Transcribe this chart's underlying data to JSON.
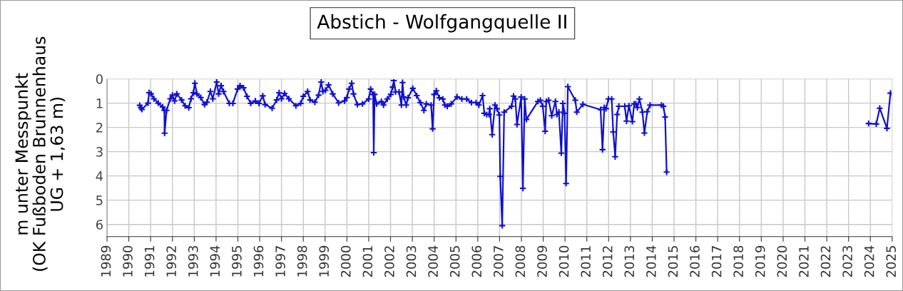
{
  "chart_data": {
    "type": "line",
    "title": "Abstich - Wolfgangquelle II",
    "ylabel": "m unter Messpunkt\n(OK Fußboden Brunnenhaus\nUG + 1,63 m)",
    "series": [
      {
        "color": "#1010d0",
        "x": [
          1990.5,
          1990.55,
          1990.6,
          1990.88,
          1990.93,
          1991.02,
          1991.15,
          1991.35,
          1991.55,
          1991.63,
          1991.64,
          1991.73,
          1991.9,
          1992.0,
          1992.1,
          1992.2,
          1992.42,
          1992.58,
          1992.75,
          1992.85,
          1992.96,
          1993.03,
          1993.12,
          1993.3,
          1993.47,
          1993.58,
          1993.74,
          1993.85,
          1994.03,
          1994.12,
          1994.23,
          1994.34,
          1994.61,
          1994.77,
          1994.99,
          1995.1,
          1995.26,
          1995.42,
          1995.59,
          1995.8,
          1995.97,
          1996.14,
          1996.25,
          1996.57,
          1996.78,
          1996.89,
          1997.0,
          1997.14,
          1997.34,
          1997.66,
          1997.88,
          1998.0,
          1998.2,
          1998.31,
          1998.53,
          1998.7,
          1998.82,
          1998.9,
          1999.02,
          1999.16,
          1999.35,
          1999.62,
          1999.89,
          2000.0,
          2000.1,
          2000.22,
          2000.3,
          2000.48,
          2000.71,
          2001.0,
          2001.09,
          2001.2,
          2001.23,
          2001.27,
          2001.36,
          2001.58,
          2001.68,
          2001.85,
          2002.01,
          2002.1,
          2002.15,
          2002.23,
          2002.39,
          2002.5,
          2002.55,
          2002.6,
          2002.72,
          2002.8,
          2003.02,
          2003.2,
          2003.37,
          2003.53,
          2003.64,
          2003.86,
          2003.93,
          2004.0,
          2004.1,
          2004.24,
          2004.4,
          2004.49,
          2004.6,
          2004.78,
          2005.05,
          2005.27,
          2005.49,
          2005.71,
          2005.92,
          2006.05,
          2006.22,
          2006.3,
          2006.41,
          2006.52,
          2006.55,
          2006.66,
          2006.79,
          2006.88,
          2006.99,
          2007.03,
          2007.12,
          2007.21,
          2007.55,
          2007.64,
          2007.72,
          2007.8,
          2007.99,
          2008.07,
          2008.15,
          2008.23,
          2008.76,
          2008.87,
          2008.98,
          2009.09,
          2009.14,
          2009.25,
          2009.39,
          2009.56,
          2009.63,
          2009.72,
          2009.83,
          2009.9,
          2009.98,
          2010.05,
          2010.13,
          2010.47,
          2010.54,
          2010.82,
          2011.63,
          2011.72,
          2011.8,
          2011.88,
          2011.99,
          2012.14,
          2012.21,
          2012.3,
          2012.39,
          2012.47,
          2012.74,
          2012.82,
          2012.93,
          2013.09,
          2013.17,
          2013.25,
          2013.32,
          2013.41,
          2013.55,
          2013.64,
          2013.77,
          2013.9,
          2014.42,
          2014.51,
          2014.59,
          2014.66,
          2019.0,
          2023.92,
          2024.27,
          2024.43,
          2024.76,
          2024.92
        ],
        "values": [
          1.09,
          1.19,
          1.26,
          1.0,
          0.57,
          0.62,
          0.82,
          1.0,
          1.16,
          1.3,
          2.24,
          1.3,
          0.82,
          0.67,
          0.91,
          0.62,
          0.87,
          1.11,
          1.19,
          0.82,
          0.57,
          0.18,
          0.62,
          0.77,
          1.06,
          0.96,
          0.52,
          0.82,
          0.13,
          0.62,
          0.28,
          0.52,
          1.01,
          1.01,
          0.42,
          0.28,
          0.37,
          0.72,
          1.01,
          0.91,
          1.01,
          0.7,
          1.06,
          1.21,
          0.87,
          0.57,
          0.82,
          0.6,
          0.82,
          1.11,
          1.01,
          0.72,
          0.52,
          0.87,
          0.96,
          0.67,
          0.13,
          0.52,
          0.47,
          0.25,
          0.62,
          0.99,
          0.91,
          0.77,
          0.42,
          0.18,
          0.62,
          1.06,
          1.03,
          0.83,
          0.42,
          0.64,
          3.04,
          0.64,
          1.03,
          0.93,
          1.08,
          0.83,
          0.64,
          0.34,
          0.07,
          0.54,
          0.54,
          1.08,
          0.15,
          0.74,
          1.08,
          0.78,
          0.39,
          0.69,
          0.98,
          1.3,
          1.03,
          1.08,
          2.06,
          0.64,
          0.49,
          0.78,
          0.83,
          1.08,
          1.13,
          1.03,
          0.74,
          0.83,
          0.83,
          0.98,
          0.98,
          1.08,
          0.69,
          1.42,
          1.47,
          1.47,
          1.23,
          2.3,
          1.08,
          1.23,
          1.49,
          4.02,
          6.05,
          1.37,
          1.13,
          0.71,
          0.83,
          1.88,
          0.75,
          4.51,
          0.83,
          1.67,
          0.93,
          0.88,
          1.13,
          2.16,
          0.93,
          0.88,
          1.52,
          0.93,
          1.47,
          1.37,
          3.06,
          1.01,
          1.42,
          4.31,
          0.32,
          0.88,
          1.37,
          1.05,
          1.27,
          2.92,
          1.18,
          1.23,
          0.83,
          0.83,
          2.19,
          3.21,
          1.47,
          1.13,
          1.13,
          1.74,
          1.11,
          1.76,
          1.03,
          1.03,
          1.18,
          0.83,
          1.37,
          2.23,
          1.35,
          1.08,
          1.08,
          1.13,
          1.57,
          3.84,
          null,
          1.84,
          1.86,
          1.21,
          2.04,
          0.59
        ]
      }
    ],
    "xlim": [
      1989,
      2025
    ],
    "xticks": [
      1989,
      1990,
      1991,
      1992,
      1993,
      1994,
      1995,
      1996,
      1997,
      1998,
      1999,
      2000,
      2001,
      2002,
      2003,
      2004,
      2005,
      2006,
      2007,
      2008,
      2009,
      2010,
      2011,
      2012,
      2013,
      2014,
      2015,
      2016,
      2017,
      2018,
      2019,
      2020,
      2021,
      2022,
      2023,
      2024,
      2025
    ],
    "ylim": [
      6.5,
      0
    ],
    "yticks": [
      0,
      1,
      2,
      3,
      4,
      5,
      6
    ],
    "grid": true,
    "marker": "cross",
    "line_style": "solid"
  }
}
